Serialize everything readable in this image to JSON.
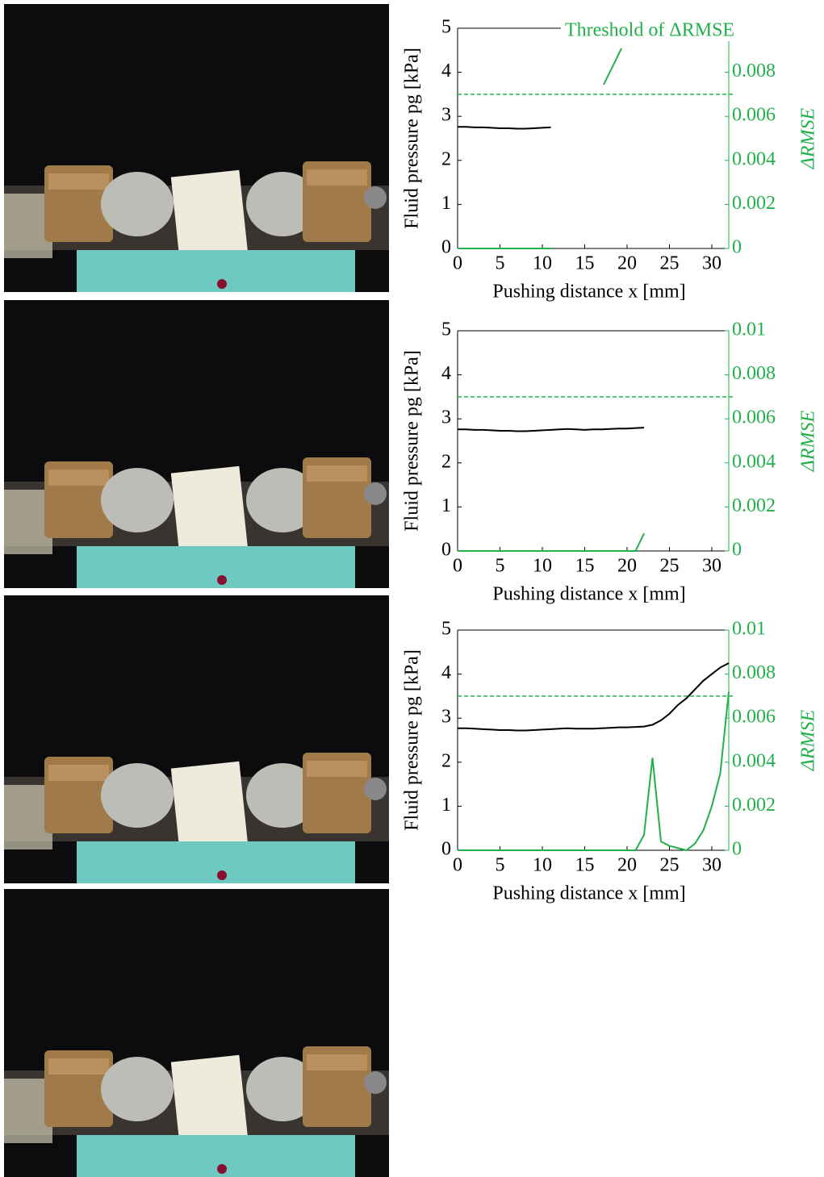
{
  "chart_data": [
    {
      "type": "line",
      "xlabel": "Pushing distance x [mm]",
      "ylabel": "Fluid pressure pg [kPa]",
      "y2label": "ΔRMSE",
      "annotation": "Threshold of ΔRMSE",
      "threshold": 0.007,
      "threshold_color": "#22b04a",
      "xlim": [
        0,
        32
      ],
      "xticks": [
        0,
        5,
        10,
        15,
        20,
        25,
        30
      ],
      "ylim": [
        0,
        5
      ],
      "yticks": [
        0,
        1,
        2,
        3,
        4,
        5
      ],
      "y2lim": [
        0,
        0.01
      ],
      "y2ticks": [
        0,
        0.002,
        0.004,
        0.006,
        0.008
      ],
      "x": [
        0,
        1,
        2,
        3,
        4,
        5,
        6,
        7,
        8,
        9,
        10,
        11
      ],
      "series": [
        {
          "color": "#000000",
          "values": [
            2.76,
            2.76,
            2.75,
            2.75,
            2.74,
            2.73,
            2.73,
            2.72,
            2.72,
            2.73,
            2.74,
            2.75
          ]
        },
        {
          "color": "#22b04a",
          "axis": "y2",
          "values": [
            0,
            0,
            0,
            0,
            0,
            0,
            0,
            0,
            0,
            0,
            0,
            0
          ]
        }
      ]
    },
    {
      "type": "line",
      "xlabel": "Pushing distance x [mm]",
      "ylabel": "Fluid pressure pg [kPa]",
      "y2label": "ΔRMSE",
      "threshold": 0.007,
      "threshold_color": "#22b04a",
      "xlim": [
        0,
        32
      ],
      "xticks": [
        0,
        5,
        10,
        15,
        20,
        25,
        30
      ],
      "ylim": [
        0,
        5
      ],
      "yticks": [
        0,
        1,
        2,
        3,
        4,
        5
      ],
      "y2lim": [
        0,
        0.01
      ],
      "y2ticks": [
        0,
        0.002,
        0.004,
        0.006,
        0.008,
        0.01
      ],
      "x": [
        0,
        1,
        2,
        3,
        4,
        5,
        6,
        7,
        8,
        9,
        10,
        11,
        12,
        13,
        14,
        15,
        16,
        17,
        18,
        19,
        20,
        21,
        22
      ],
      "series": [
        {
          "color": "#000000",
          "values": [
            2.76,
            2.76,
            2.75,
            2.75,
            2.74,
            2.73,
            2.73,
            2.72,
            2.72,
            2.73,
            2.74,
            2.75,
            2.76,
            2.77,
            2.76,
            2.75,
            2.76,
            2.76,
            2.77,
            2.78,
            2.78,
            2.79,
            2.8
          ]
        },
        {
          "color": "#22b04a",
          "axis": "y2",
          "values": [
            0,
            0,
            0,
            0,
            0,
            0,
            0,
            0,
            0,
            0,
            0,
            0,
            0,
            0,
            0,
            0,
            0,
            0,
            0,
            0,
            0,
            0,
            0.0008
          ]
        }
      ]
    },
    {
      "type": "line",
      "xlabel": "Pushing distance x [mm]",
      "ylabel": "Fluid pressure pg [kPa]",
      "y2label": "ΔRMSE",
      "threshold": 0.007,
      "threshold_color": "#22b04a",
      "xlim": [
        0,
        32
      ],
      "xticks": [
        0,
        5,
        10,
        15,
        20,
        25,
        30
      ],
      "ylim": [
        0,
        5
      ],
      "yticks": [
        0,
        1,
        2,
        3,
        4,
        5
      ],
      "y2lim": [
        0,
        0.01
      ],
      "y2ticks": [
        0,
        0.002,
        0.004,
        0.006,
        0.008,
        0.01
      ],
      "x": [
        0,
        1,
        2,
        3,
        4,
        5,
        6,
        7,
        8,
        9,
        10,
        11,
        12,
        13,
        14,
        15,
        16,
        17,
        18,
        19,
        20,
        21,
        22,
        23,
        24,
        25,
        26,
        27,
        28,
        29,
        30,
        31,
        32
      ],
      "series": [
        {
          "color": "#000000",
          "values": [
            2.77,
            2.77,
            2.76,
            2.75,
            2.74,
            2.73,
            2.73,
            2.72,
            2.72,
            2.73,
            2.74,
            2.75,
            2.76,
            2.77,
            2.76,
            2.76,
            2.76,
            2.77,
            2.78,
            2.79,
            2.79,
            2.8,
            2.81,
            2.85,
            2.95,
            3.1,
            3.3,
            3.45,
            3.65,
            3.85,
            4.0,
            4.15,
            4.25
          ]
        },
        {
          "color": "#22b04a",
          "axis": "y2",
          "values": [
            0,
            0,
            0,
            0,
            0,
            0,
            0,
            0,
            0,
            0,
            0,
            0,
            0,
            0,
            0,
            0,
            0,
            0,
            0,
            0,
            0,
            0,
            0.0007,
            0.0042,
            0.0004,
            0.0002,
            0.0001,
            0,
            0.0003,
            0.0009,
            0.002,
            0.0035,
            0.0072
          ]
        }
      ]
    }
  ]
}
